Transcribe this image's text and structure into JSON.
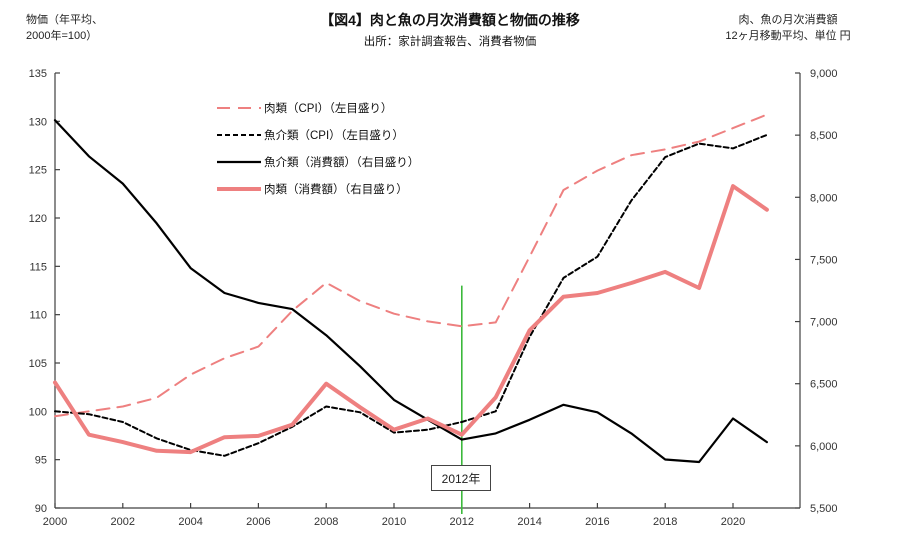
{
  "header": {
    "left_axis_title": "物価（年平均、\n2000年=100）",
    "title": "【図4】肉と魚の月次消費額と物価の推移",
    "subtitle": "出所：家計調査報告、消費者物価",
    "right_axis_title": "肉、魚の月次消費額\n12ヶ月移動平均、単位  円"
  },
  "annotation": {
    "label": "2012年",
    "year": 2012,
    "line_color": "#3cb93c"
  },
  "colors": {
    "pink": "#ee8080",
    "black": "#000000",
    "green": "#3cb93c",
    "axis": "#404040"
  },
  "chart_data": {
    "type": "line",
    "x": [
      2000,
      2001,
      2002,
      2003,
      2004,
      2005,
      2006,
      2007,
      2008,
      2009,
      2010,
      2011,
      2012,
      2013,
      2014,
      2015,
      2016,
      2017,
      2018,
      2019,
      2020,
      2021
    ],
    "title": "【図4】肉と魚の月次消費額と物価の推移",
    "subtitle": "出所：家計調査報告、消費者物価",
    "grid": false,
    "legend_position": "upper-left-inside",
    "axes": {
      "left": {
        "label": "物価（年平均、2000年=100）",
        "min": 90,
        "max": 135,
        "step": 5,
        "ticks": [
          "135",
          "130",
          "125",
          "120",
          "115",
          "110",
          "105",
          "100",
          "95",
          "90"
        ]
      },
      "right": {
        "label": "肉、魚の月次消費額 12ヶ月移動平均、単位 円",
        "min": 5500,
        "max": 9000,
        "step": 500,
        "ticks": [
          "9,000",
          "8,500",
          "8,000",
          "7,500",
          "7,000",
          "6,500",
          "6,000",
          "5,500"
        ]
      },
      "x": {
        "tick_years": [
          2000,
          2002,
          2004,
          2006,
          2008,
          2010,
          2012,
          2014,
          2016,
          2018,
          2020
        ],
        "tick_labels": [
          "2000",
          "2002",
          "2004",
          "2006",
          "2008",
          "2010",
          "2012",
          "2014",
          "2016",
          "2018",
          "2020"
        ]
      }
    },
    "series": [
      {
        "name": "肉類（CPI）（左目盛り）",
        "axis": "left",
        "color": "#ee8080",
        "dash": "13 8",
        "width": 2,
        "values": [
          99.5,
          100.0,
          100.5,
          101.4,
          103.8,
          105.5,
          106.7,
          110.4,
          113.3,
          111.4,
          110.1,
          109.3,
          108.8,
          109.2,
          116.0,
          122.9,
          124.9,
          126.5,
          127.1,
          127.9,
          129.3,
          130.7
        ]
      },
      {
        "name": "魚介類（CPI）（左目盛り）",
        "axis": "left",
        "color": "#000000",
        "dash": "5 3",
        "width": 2,
        "values": [
          100.0,
          99.7,
          98.9,
          97.2,
          96.0,
          95.4,
          96.7,
          98.4,
          100.5,
          99.9,
          97.8,
          98.1,
          98.9,
          100.0,
          107.7,
          113.8,
          116.0,
          121.8,
          126.3,
          127.7,
          127.2,
          128.6
        ]
      },
      {
        "name": "魚介類（消費額）（右目盛り）",
        "axis": "right",
        "color": "#000000",
        "dash": "",
        "width": 2.2,
        "values": [
          8620,
          8330,
          8110,
          7790,
          7430,
          7230,
          7150,
          7100,
          6890,
          6640,
          6370,
          6210,
          6050,
          6100,
          6210,
          6330,
          6270,
          6100,
          5890,
          5870,
          6220,
          6030
        ]
      },
      {
        "name": "肉類（消費額）（右目盛り）",
        "axis": "right",
        "color": "#ee8080",
        "dash": "",
        "width": 4,
        "values": [
          6510,
          6090,
          6030,
          5960,
          5950,
          6070,
          6080,
          6170,
          6500,
          6310,
          6130,
          6220,
          6090,
          6390,
          6930,
          7200,
          7230,
          7310,
          7400,
          7270,
          8090,
          7900
        ]
      }
    ],
    "annotation": {
      "label": "2012年",
      "year": 2012
    }
  }
}
